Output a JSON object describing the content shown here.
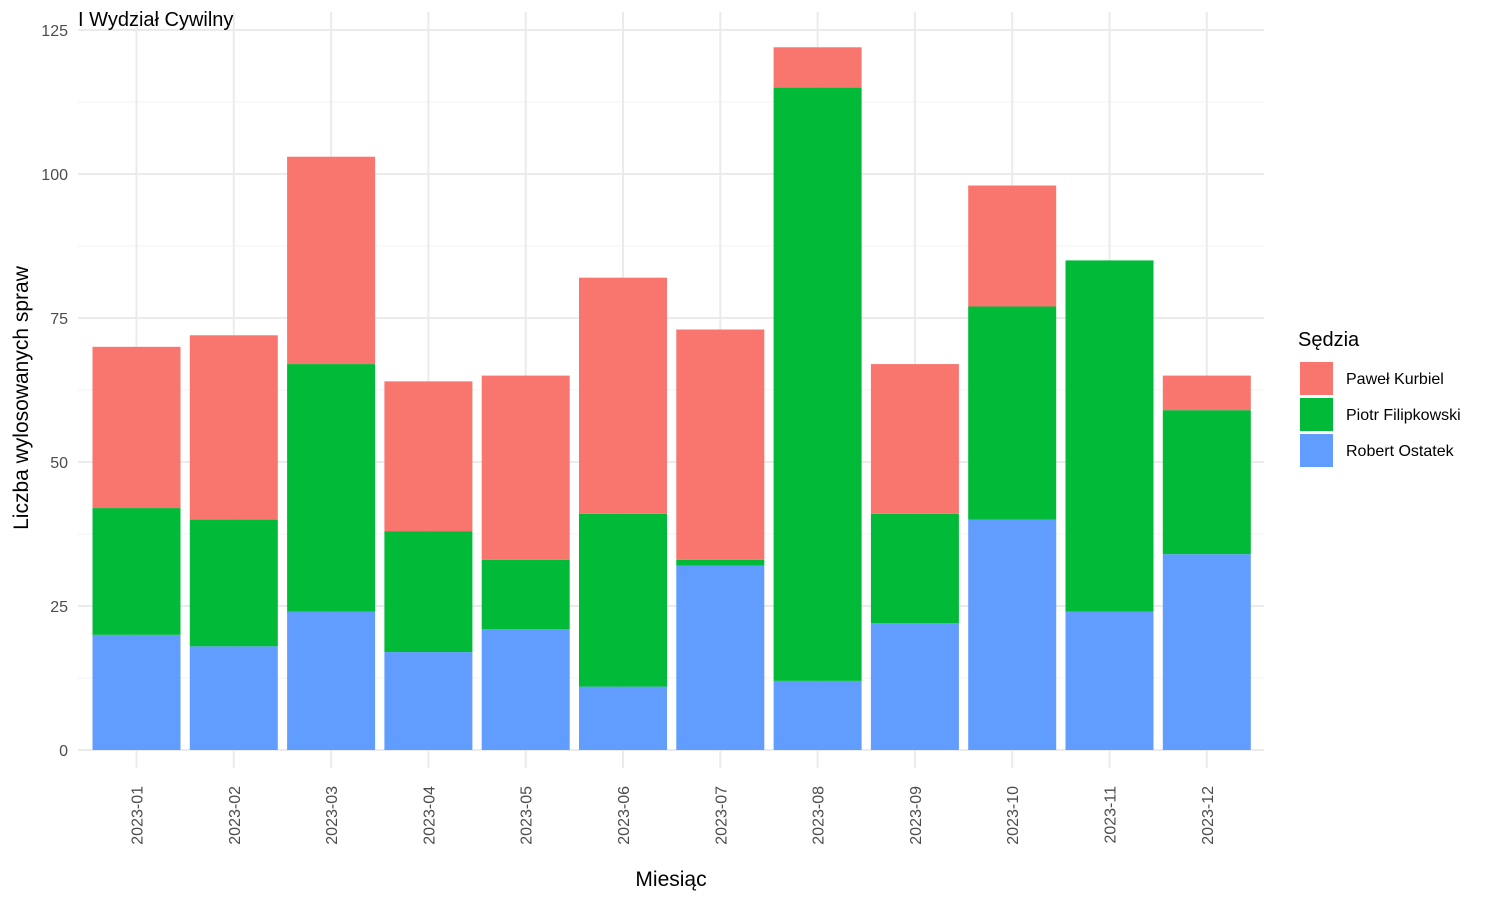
{
  "chart_data": {
    "type": "bar",
    "stacked": true,
    "title": "I Wydział Cywilny",
    "xlabel": "Miesiąc",
    "ylabel": "Liczba wylosowanych spraw",
    "ylim": [
      0,
      125
    ],
    "yticks": [
      0,
      25,
      50,
      75,
      100,
      125
    ],
    "grid": true,
    "legend_title": "Sędzia",
    "legend_position": "right",
    "categories": [
      "2023-01",
      "2023-02",
      "2023-03",
      "2023-04",
      "2023-05",
      "2023-06",
      "2023-07",
      "2023-08",
      "2023-09",
      "2023-10",
      "2023-11",
      "2023-12"
    ],
    "series": [
      {
        "name": "Paweł Kurbiel",
        "color": "#F8766D",
        "values": [
          28,
          32,
          36,
          26,
          32,
          41,
          40,
          7,
          26,
          21,
          0,
          6
        ]
      },
      {
        "name": "Piotr Filipkowski",
        "color": "#00BA38",
        "values": [
          22,
          22,
          43,
          21,
          12,
          30,
          1,
          103,
          19,
          37,
          61,
          25
        ]
      },
      {
        "name": "Robert Ostatek",
        "color": "#619CFF",
        "values": [
          20,
          18,
          24,
          17,
          21,
          11,
          32,
          12,
          22,
          40,
          24,
          34
        ]
      }
    ],
    "stack_order_bottom_to_top": [
      "Robert Ostatek",
      "Piotr Filipkowski",
      "Paweł Kurbiel"
    ]
  }
}
